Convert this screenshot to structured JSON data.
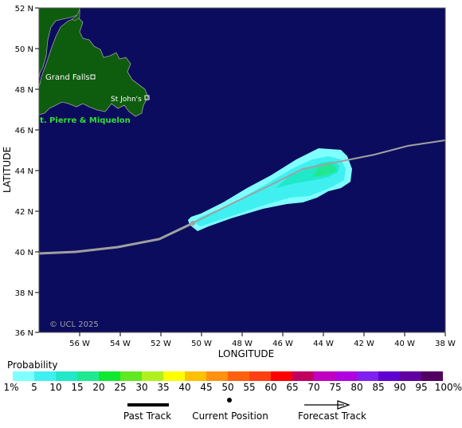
{
  "map": {
    "ocean_color": "#0c0c5e",
    "land_color": "#0e5c0e",
    "lat_ticks": [
      "52 N",
      "50 N",
      "48 N",
      "46 N",
      "44 N",
      "42 N",
      "40 N",
      "38 N",
      "36 N"
    ],
    "lon_ticks": [
      "56 W",
      "54 W",
      "52 W",
      "50 W",
      "48 W",
      "46 W",
      "44 W",
      "42 W",
      "40 W",
      "38 W"
    ],
    "y_axis_label": "LATITUDE",
    "x_axis_label": "LONGITUDE",
    "copyright": "© UCL 2025",
    "cities": [
      {
        "name": "Grand Falls"
      },
      {
        "name": "St John's"
      }
    ],
    "region_label": "t. Pierre & Miquelon"
  },
  "legend": {
    "title": "Probability",
    "labels": [
      "1%",
      "5",
      "10",
      "15",
      "20",
      "25",
      "30",
      "35",
      "40",
      "45",
      "50",
      "55",
      "60",
      "65",
      "70",
      "75",
      "80",
      "85",
      "90",
      "95",
      "100%"
    ],
    "colors": [
      "#80ffff",
      "#40f0f0",
      "#20e8c8",
      "#20e890",
      "#10e830",
      "#60e820",
      "#b0f020",
      "#ffff00",
      "#ffc000",
      "#ff9010",
      "#ff6010",
      "#ff4010",
      "#ff0000",
      "#c00060",
      "#c000c0",
      "#b000e0",
      "#8020f0",
      "#6000d0",
      "#6000a0",
      "#500060"
    ]
  },
  "track_legend": {
    "past": "Past Track",
    "current": "Current Position",
    "forecast": "Forecast Track"
  }
}
